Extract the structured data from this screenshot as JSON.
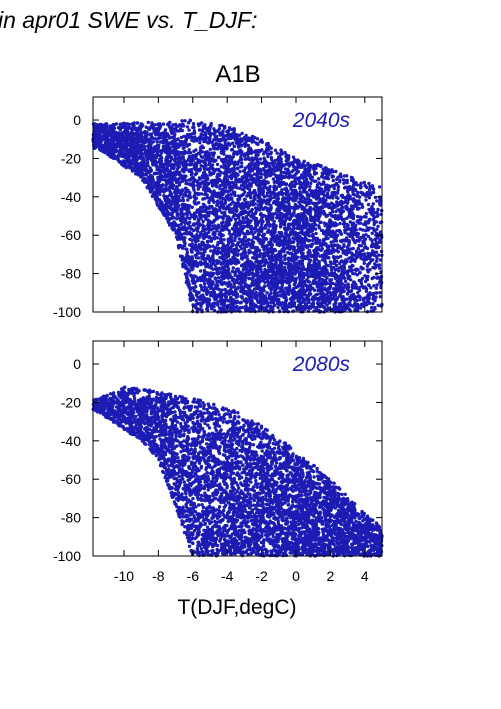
{
  "heading": "in apr01 SWE vs. T_DJF:",
  "scenario_title": "A1B",
  "colors": {
    "points": "#1c1cb4",
    "axis": "#000000",
    "label": "#1c1cb4"
  },
  "chart_data": [
    {
      "type": "scatter",
      "panel_label": "2040s",
      "xlim": [
        -11.8,
        5.0
      ],
      "ylim": [
        -100,
        12
      ],
      "yticks": [
        0,
        -20,
        -40,
        -60,
        -80,
        -100
      ],
      "xticks": [
        -10,
        -8,
        -6,
        -4,
        -2,
        0,
        2,
        4
      ],
      "show_xtick_labels": false,
      "grid": false,
      "cloud": {
        "n": 9000,
        "top_edge": [
          [
            -11.5,
            -2
          ],
          [
            -8,
            -1
          ],
          [
            -6,
            0
          ],
          [
            -4,
            -3
          ],
          [
            -2,
            -10
          ],
          [
            0,
            -20
          ],
          [
            2,
            -25
          ],
          [
            4,
            -32
          ],
          [
            5,
            -35
          ]
        ],
        "bottom_edge": [
          [
            -11.5,
            -15
          ],
          [
            -9,
            -30
          ],
          [
            -7,
            -60
          ],
          [
            -6,
            -100
          ],
          [
            5,
            -100
          ]
        ],
        "bias": 0.9
      }
    },
    {
      "type": "scatter",
      "panel_label": "2080s",
      "xlim": [
        -11.8,
        5.0
      ],
      "ylim": [
        -100,
        12
      ],
      "yticks": [
        0,
        -20,
        -40,
        -60,
        -80,
        -100
      ],
      "xticks": [
        -10,
        -8,
        -6,
        -4,
        -2,
        0,
        2,
        4
      ],
      "xtick_labels": [
        "-10",
        "-8",
        "-6",
        "-4",
        "-2",
        "0",
        "2",
        "4"
      ],
      "show_xtick_labels": true,
      "xlabel": "T(DJF,degC)",
      "grid": false,
      "cloud": {
        "n": 7000,
        "top_edge": [
          [
            -11.5,
            -18
          ],
          [
            -10,
            -12
          ],
          [
            -8,
            -14
          ],
          [
            -6,
            -18
          ],
          [
            -4,
            -22
          ],
          [
            -2,
            -32
          ],
          [
            0,
            -45
          ],
          [
            2,
            -60
          ],
          [
            4,
            -78
          ],
          [
            5,
            -85
          ]
        ],
        "bottom_edge": [
          [
            -11.5,
            -25
          ],
          [
            -9,
            -40
          ],
          [
            -8,
            -50
          ],
          [
            -7,
            -75
          ],
          [
            -6,
            -100
          ],
          [
            5,
            -100
          ]
        ],
        "bias": 0.9
      }
    }
  ]
}
